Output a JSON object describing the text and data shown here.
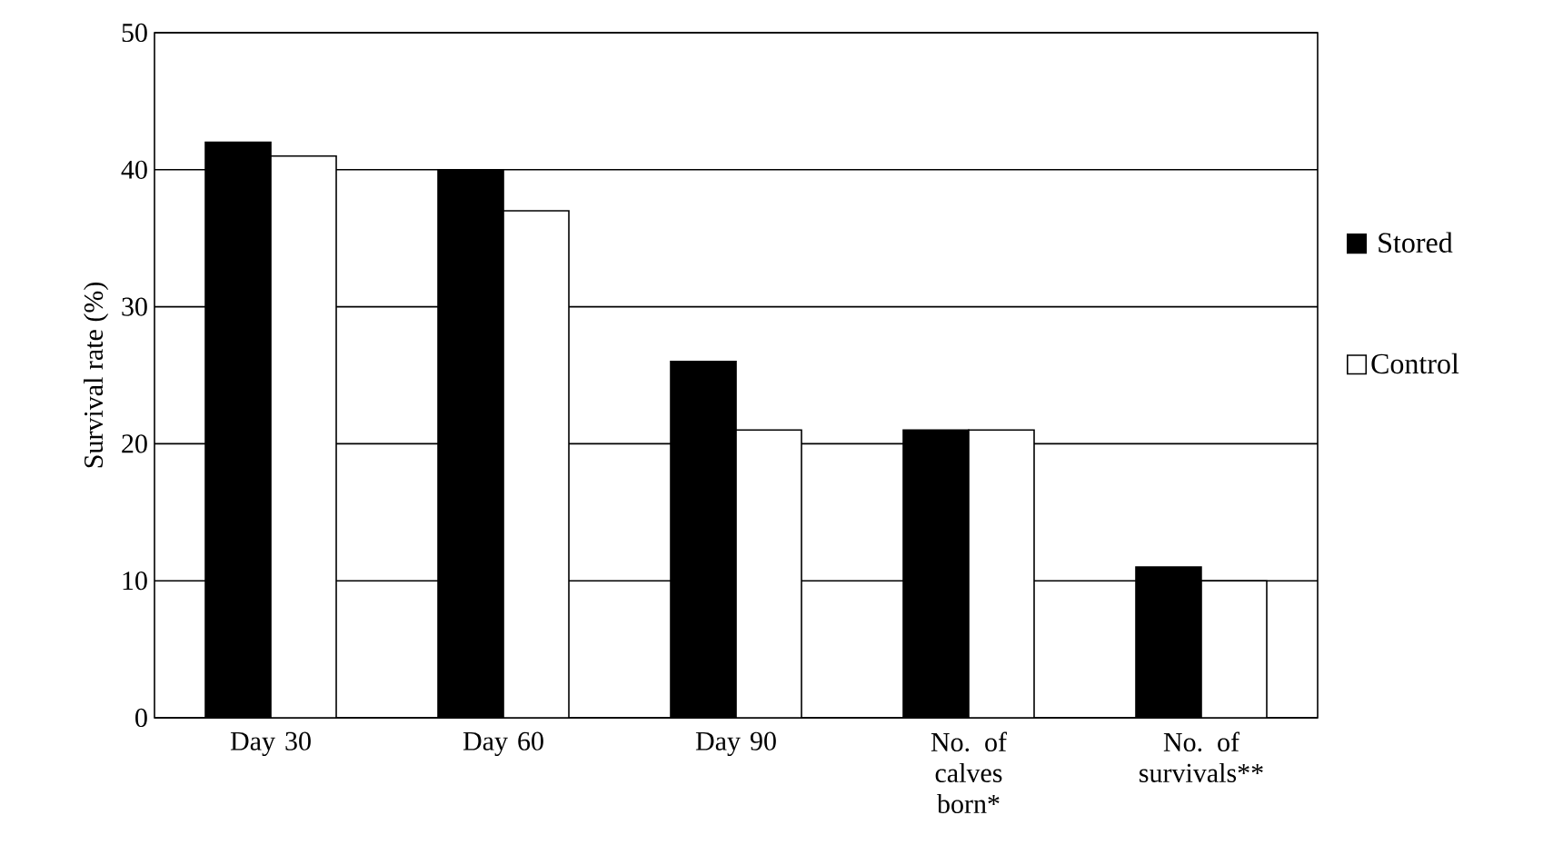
{
  "chart_data": {
    "type": "bar",
    "ylabel": "Survival rate (%)",
    "categories": [
      "Day 30",
      "Day 60",
      "Day 90",
      "No. of calves born*",
      "No. of survivals**"
    ],
    "series": [
      {
        "name": "Stored",
        "color": "#000000",
        "values": [
          42,
          40,
          26,
          21,
          11
        ]
      },
      {
        "name": "Control",
        "color": "#ffffff",
        "values": [
          41,
          37,
          21,
          21,
          10
        ]
      }
    ],
    "ylim": [
      0,
      50
    ],
    "yticks": [
      0,
      10,
      20,
      30,
      40,
      50
    ],
    "grid": "y",
    "legend": "right"
  }
}
